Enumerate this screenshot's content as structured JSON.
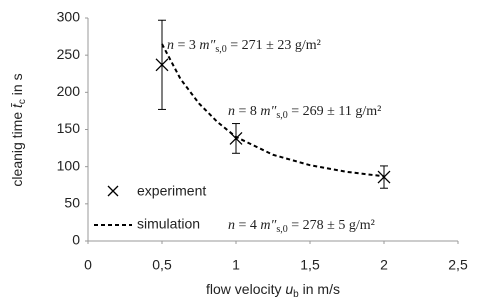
{
  "chart_data": {
    "type": "scatter",
    "x_label": [
      "flow velocity ",
      "u",
      "b",
      " in m/s"
    ],
    "y_label": [
      "cleanig time ",
      "t̄",
      "c",
      " in s"
    ],
    "xlim": [
      0,
      2.5
    ],
    "xticks": [
      0,
      {
        "value": 0.5,
        "label": "0,5"
      },
      1,
      {
        "value": 1.5,
        "label": "1,5"
      },
      2,
      {
        "value": 2.5,
        "label": "2,5"
      }
    ],
    "ylim": [
      0,
      300
    ],
    "yticks": [
      0,
      50,
      100,
      150,
      200,
      250,
      300
    ],
    "grid": false,
    "legend": "lower left",
    "series": [
      {
        "name": "experiment",
        "color": "#000000",
        "x": [
          0.5,
          1,
          2
        ],
        "values": [
          237,
          138,
          86
        ],
        "errors": [
          60,
          20,
          15
        ]
      },
      {
        "name": "simulation",
        "color": "#000000",
        "x": [
          0.5,
          0.625,
          0.75,
          0.875,
          1,
          1.25,
          1.5,
          1.75,
          2
        ],
        "values": [
          265,
          218,
          185,
          160,
          140,
          116,
          102,
          93,
          87
        ]
      }
    ],
    "annotations": [
      {
        "parts": [
          "n",
          " = 3  ",
          "m″",
          "s,0",
          " = 271 ± 23 g/m²"
        ]
      },
      {
        "parts": [
          "n",
          " = 8  ",
          "m″",
          "s,0",
          " = 269 ± 11 g/m²"
        ]
      },
      {
        "parts": [
          "n",
          " = 4  ",
          "m″",
          "s,0",
          " = 278 ± 5 g/m²"
        ]
      }
    ]
  }
}
